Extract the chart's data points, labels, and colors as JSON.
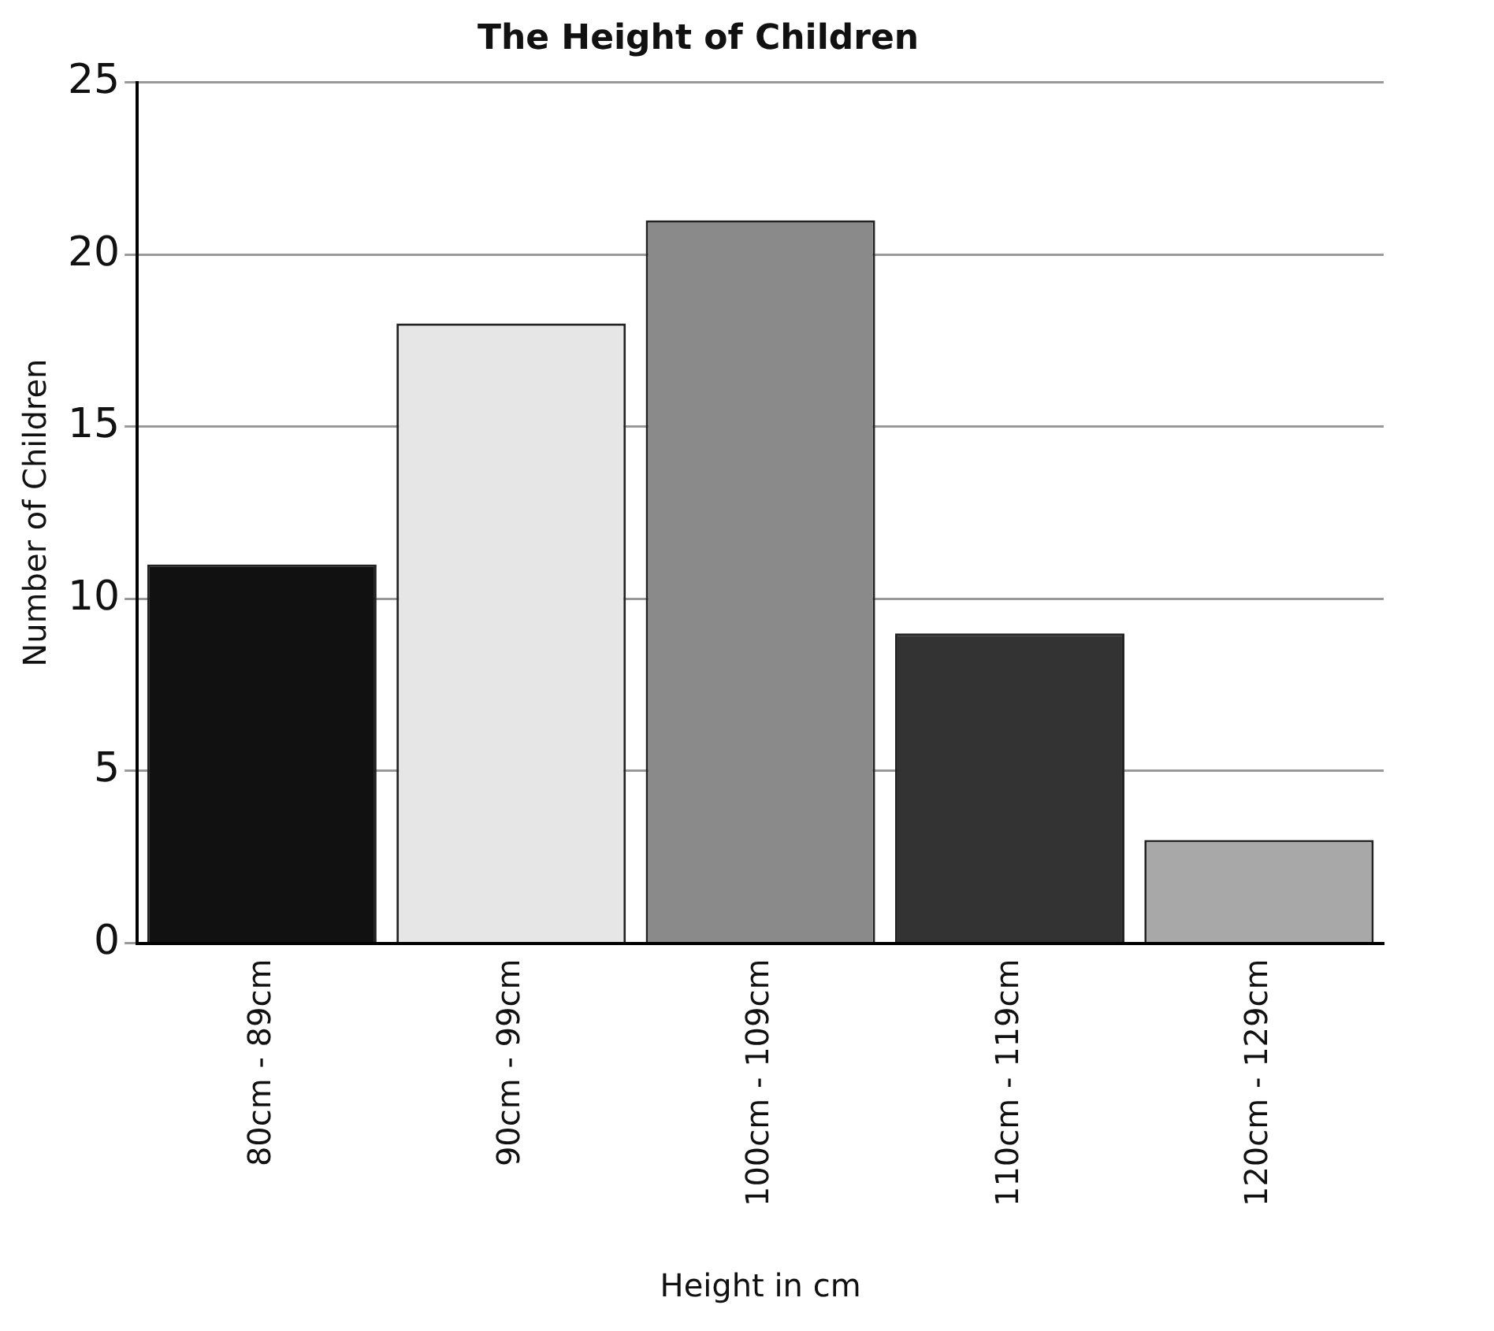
{
  "chart_data": {
    "type": "bar",
    "title": "The Height of Children",
    "xlabel": "Height in cm",
    "ylabel": "Number of Children",
    "categories": [
      "80cm - 89cm",
      "90cm - 99cm",
      "100cm - 109cm",
      "110cm - 119cm",
      "120cm - 129cm"
    ],
    "values": [
      11,
      18,
      21,
      9,
      3
    ],
    "colors": [
      "#111111",
      "#e6e6e6",
      "#8a8a8a",
      "#333333",
      "#a8a8a8"
    ],
    "ylim": [
      0,
      25
    ],
    "yticks": [
      0,
      5,
      10,
      15,
      20,
      25
    ],
    "grid": "y",
    "legend": false
  }
}
